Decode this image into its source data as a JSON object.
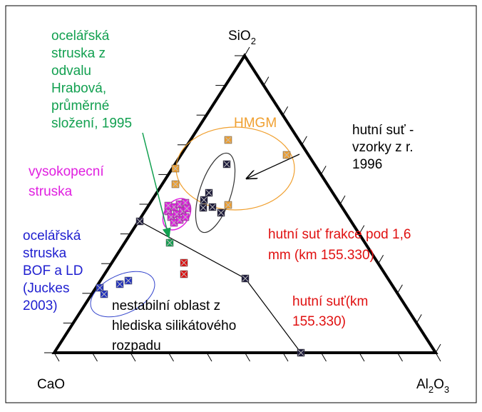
{
  "apex_top": {
    "text": "SiO",
    "sub": "2"
  },
  "apex_left": "CaO",
  "apex_right": {
    "text": "Al",
    "sub": "2",
    "text2": "O",
    "sub2": "3"
  },
  "labels": {
    "green": [
      "ocelářská",
      "struska z",
      "odvalu",
      "Hrabová,",
      "průměrné",
      "složení, 1995"
    ],
    "hmgm": "HMGM",
    "black_samples": [
      "hutní suť -",
      "vzorky z r.",
      "1996"
    ],
    "magenta": [
      "vysokopecní",
      "struska"
    ],
    "red_fraction": [
      "hutní suť frakce pod 1,6",
      "mm (km 155.330)"
    ],
    "blue": [
      "ocelářská",
      "struska",
      "BOF a LD",
      "(Juckes",
      "2003)"
    ],
    "unstable": [
      "nestabilní oblast z",
      "hlediska silikátového",
      "rozpadu"
    ],
    "red_bulk": [
      "hutní suť(km",
      "155.330)"
    ]
  }
}
